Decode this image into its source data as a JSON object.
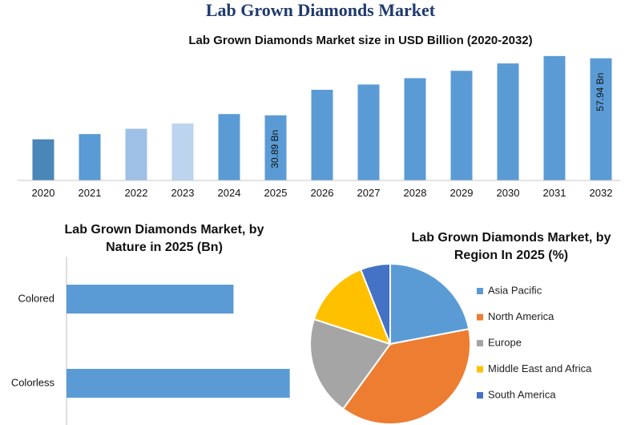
{
  "page_title": "Lab Grown Diamonds Market",
  "chart_data": [
    {
      "type": "bar",
      "title": "Lab Grown Diamonds Market size in USD Billion (2020-2032)",
      "categories": [
        "2020",
        "2021",
        "2022",
        "2023",
        "2024",
        "2025",
        "2026",
        "2027",
        "2028",
        "2029",
        "2030",
        "2031",
        "2032"
      ],
      "values": [
        19.5,
        22.0,
        24.5,
        27.0,
        31.5,
        30.89,
        43.0,
        45.5,
        48.5,
        52.0,
        55.5,
        59.0,
        57.94
      ],
      "colors": [
        "#4a86b8",
        "#5b9bd5",
        "#9fc0e6",
        "#bdd4ee",
        "#5b9bd5",
        "#5b9bd5",
        "#5b9bd5",
        "#5b9bd5",
        "#5b9bd5",
        "#5b9bd5",
        "#5b9bd5",
        "#5b9bd5",
        "#5b9bd5"
      ],
      "data_labels": [
        {
          "index": 5,
          "text": "30.89 Bn"
        },
        {
          "index": 12,
          "text": "57.94 Bn"
        }
      ],
      "ylim": [
        0,
        62
      ],
      "grid": false,
      "legend": "none"
    },
    {
      "type": "bar",
      "orientation": "horizontal",
      "title": "Lab Grown Diamonds Market, by Nature in 2025 (Bn)",
      "categories": [
        "Colored",
        "Colorless"
      ],
      "values": [
        9.2,
        12.3
      ],
      "xlim": [
        0,
        12.8
      ],
      "color": "#5b9bd5",
      "grid": false
    },
    {
      "type": "pie",
      "title": "Lab Grown Diamonds Market, by Region In 2025 (%)",
      "labels": [
        "Asia Pacific",
        "North America",
        "Europe",
        "Middle East and Africa",
        "South America"
      ],
      "values": [
        22,
        38,
        20,
        14,
        6
      ],
      "colors": [
        "#5b9bd5",
        "#ed7d31",
        "#a5a5a5",
        "#ffc000",
        "#4472c4"
      ],
      "legend": "right"
    }
  ]
}
